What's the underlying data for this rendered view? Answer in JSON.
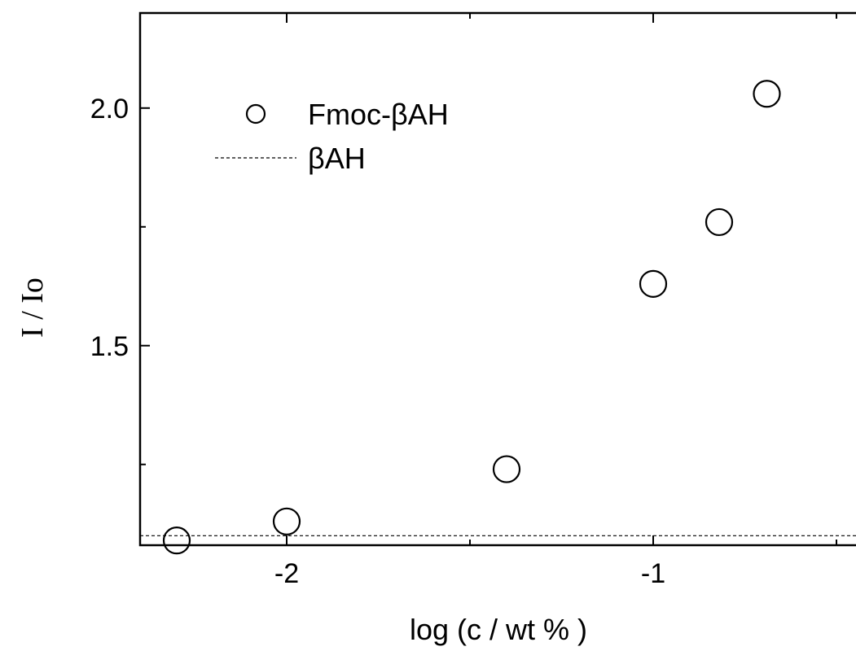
{
  "chart_data": {
    "type": "scatter",
    "xlabel": "log (c / wt % )",
    "ylabel": "I / Io",
    "xlim": [
      -2.4,
      -0.4
    ],
    "ylim": [
      1.08,
      2.2
    ],
    "x_ticks": [
      -2,
      -1
    ],
    "x_tick_labels": [
      "-2",
      "-1"
    ],
    "x_minor_ticks": [
      -1.5,
      -0.5
    ],
    "y_ticks": [
      1.5,
      2.0
    ],
    "y_tick_labels": [
      "1.5",
      "2.0"
    ],
    "y_minor_ticks": [
      1.25,
      1.75
    ],
    "grid": false,
    "legend_position": "top-left",
    "series": [
      {
        "name": "Fmoc-βAH",
        "marker": "open-circle",
        "color": "#000000",
        "x": [
          -2.3,
          -2.0,
          -1.4,
          -1.0,
          -0.82,
          -0.69
        ],
        "y": [
          1.09,
          1.13,
          1.24,
          1.63,
          1.76,
          2.03
        ]
      }
    ],
    "reference_lines": [
      {
        "name": "βAH",
        "style": "dashed",
        "color": "#000000",
        "y": 1.1
      }
    ]
  }
}
